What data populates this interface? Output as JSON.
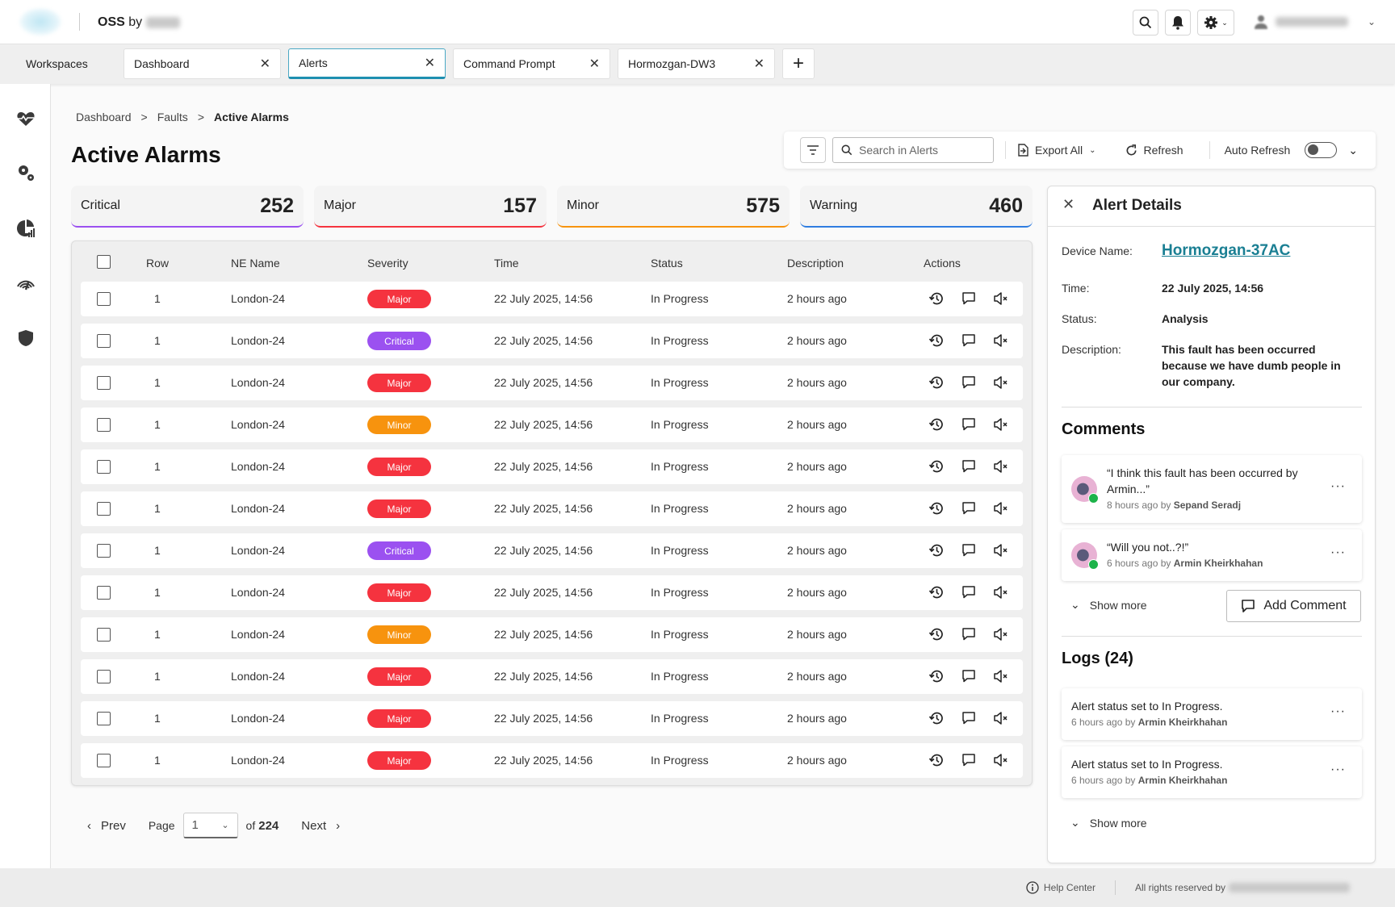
{
  "header": {
    "brand_bold": "OSS",
    "brand_by": "by"
  },
  "tabs": {
    "workspaces_label": "Workspaces",
    "items": [
      {
        "label": "Dashboard"
      },
      {
        "label": "Alerts",
        "active": true
      },
      {
        "label": "Command Prompt"
      },
      {
        "label": "Hormozgan-DW3"
      }
    ],
    "close_glyph": "✕",
    "add_glyph": "+"
  },
  "sidebar": {
    "icons": [
      "heart-pulse-icon",
      "gears-icon",
      "pie-chart-icon",
      "signal-gauge-icon",
      "shield-icon"
    ]
  },
  "breadcrumb": {
    "items": [
      "Dashboard",
      "Faults",
      "Active Alarms"
    ],
    "separator": ">"
  },
  "page_title": "Active Alarms",
  "toolbar": {
    "search_placeholder": "Search in Alerts",
    "export_label": "Export All",
    "refresh_label": "Refresh",
    "auto_refresh_label": "Auto Refresh",
    "auto_refresh_on": false
  },
  "stats": [
    {
      "label": "Critical",
      "value": "252",
      "color": "#9b51f0"
    },
    {
      "label": "Major",
      "value": "157",
      "color": "#f5333f"
    },
    {
      "label": "Minor",
      "value": "575",
      "color": "#f7930e"
    },
    {
      "label": "Warning",
      "value": "460",
      "color": "#2f7de0"
    }
  ],
  "severity_colors": {
    "Major": "#f5333f",
    "Critical": "#9b51f0",
    "Minor": "#f7930e"
  },
  "table": {
    "columns": [
      "Row",
      "NE Name",
      "Severity",
      "Time",
      "Status",
      "Description",
      "Actions"
    ],
    "rows": [
      {
        "row": "1",
        "ne": "London-24",
        "severity": "Major",
        "time": "22 July 2025, 14:56",
        "status": "In Progress",
        "desc": "2 hours ago"
      },
      {
        "row": "1",
        "ne": "London-24",
        "severity": "Critical",
        "time": "22 July 2025, 14:56",
        "status": "In Progress",
        "desc": "2 hours ago"
      },
      {
        "row": "1",
        "ne": "London-24",
        "severity": "Major",
        "time": "22 July 2025, 14:56",
        "status": "In Progress",
        "desc": "2 hours ago"
      },
      {
        "row": "1",
        "ne": "London-24",
        "severity": "Minor",
        "time": "22 July 2025, 14:56",
        "status": "In Progress",
        "desc": "2 hours ago"
      },
      {
        "row": "1",
        "ne": "London-24",
        "severity": "Major",
        "time": "22 July 2025, 14:56",
        "status": "In Progress",
        "desc": "2 hours ago"
      },
      {
        "row": "1",
        "ne": "London-24",
        "severity": "Major",
        "time": "22 July 2025, 14:56",
        "status": "In Progress",
        "desc": "2 hours ago"
      },
      {
        "row": "1",
        "ne": "London-24",
        "severity": "Critical",
        "time": "22 July 2025, 14:56",
        "status": "In Progress",
        "desc": "2 hours ago"
      },
      {
        "row": "1",
        "ne": "London-24",
        "severity": "Major",
        "time": "22 July 2025, 14:56",
        "status": "In Progress",
        "desc": "2 hours ago"
      },
      {
        "row": "1",
        "ne": "London-24",
        "severity": "Minor",
        "time": "22 July 2025, 14:56",
        "status": "In Progress",
        "desc": "2 hours ago"
      },
      {
        "row": "1",
        "ne": "London-24",
        "severity": "Major",
        "time": "22 July 2025, 14:56",
        "status": "In Progress",
        "desc": "2 hours ago"
      },
      {
        "row": "1",
        "ne": "London-24",
        "severity": "Major",
        "time": "22 July 2025, 14:56",
        "status": "In Progress",
        "desc": "2 hours ago"
      },
      {
        "row": "1",
        "ne": "London-24",
        "severity": "Major",
        "time": "22 July 2025, 14:56",
        "status": "In Progress",
        "desc": "2 hours ago"
      }
    ]
  },
  "pagination": {
    "prev": "Prev",
    "page_label": "Page",
    "current": "1",
    "of_label": "of",
    "total": "224",
    "next": "Next"
  },
  "details": {
    "title": "Alert Details",
    "device_label": "Device Name:",
    "device_value": "Hormozgan-37AC",
    "time_label": "Time:",
    "time_value": "22 July 2025, 14:56",
    "status_label": "Status:",
    "status_value": "Analysis",
    "desc_label": "Description:",
    "desc_value": "This fault has been occurred because we have dumb people in our company.",
    "link_color": "#1a7f93",
    "comments_title": "Comments",
    "comments": [
      {
        "text": "“I think this fault has been occurred by Armin...”",
        "ago": "8 hours ago by",
        "author": "Sepand Seradj"
      },
      {
        "text": "“Will you not..?!”",
        "ago": "6 hours ago by",
        "author": "Armin Kheirkhahan"
      }
    ],
    "show_more": "Show more",
    "add_comment": "Add Comment",
    "logs_title": "Logs (24)",
    "logs": [
      {
        "text": "Alert status set to In Progress.",
        "ago": "6 hours ago by",
        "author": "Armin Kheirkhahan"
      },
      {
        "text": "Alert status set to In Progress.",
        "ago": "6 hours ago by",
        "author": "Armin Kheirkhahan"
      }
    ],
    "more_glyph": "···"
  },
  "footer": {
    "help": "Help Center",
    "rights": "All rights reserved by"
  }
}
